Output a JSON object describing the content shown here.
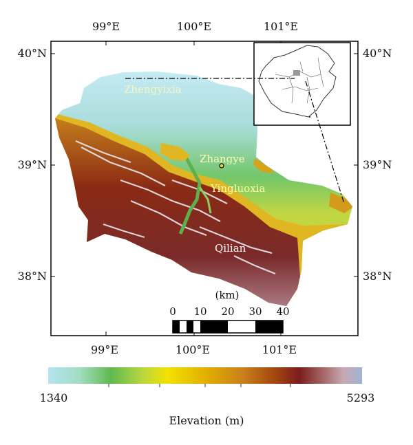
{
  "map": {
    "lon_ticks": [
      "99°E",
      "100°E",
      "101°E"
    ],
    "lat_ticks": [
      "40°N",
      "39°N",
      "38°N"
    ],
    "places": [
      {
        "name": "Zhengyixia",
        "color": "#f4f6c0"
      },
      {
        "name": "Zhangye",
        "color": "#ffffb0"
      },
      {
        "name": "Yingluoxia",
        "color": "#ffffb0"
      },
      {
        "name": "Qilian",
        "color": "#ffffff"
      }
    ],
    "scale_bar": {
      "unit": "(km)",
      "labels": [
        "0",
        "10",
        "20",
        "30",
        "40"
      ]
    }
  },
  "legend": {
    "min": "1340",
    "max": "5293",
    "title": "Elevation (m)",
    "colors": [
      "#b5e3f1",
      "#a3dcc3",
      "#5fba4e",
      "#b9d640",
      "#f2e200",
      "#e3b000",
      "#c9801a",
      "#a0420f",
      "#7b1c1c",
      "#a86a6a",
      "#c8a9b4",
      "#9fb2d6"
    ]
  }
}
